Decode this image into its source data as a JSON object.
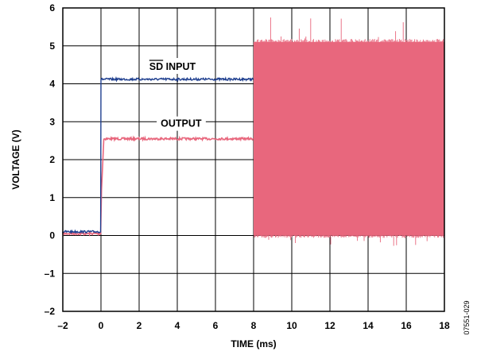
{
  "chart_data": {
    "type": "line",
    "title": "",
    "xlabel": "TIME (ms)",
    "ylabel": "VOLTAGE (V)",
    "xlim": [
      -2,
      18
    ],
    "ylim": [
      -2,
      6
    ],
    "xticks": [
      -2,
      0,
      2,
      4,
      6,
      8,
      10,
      12,
      14,
      16,
      18
    ],
    "yticks": [
      -2,
      -1,
      0,
      1,
      2,
      3,
      4,
      5,
      6
    ],
    "xtick_labels": [
      "–2",
      "0",
      "2",
      "4",
      "6",
      "8",
      "10",
      "12",
      "14",
      "16",
      "18"
    ],
    "ytick_labels": [
      "–2",
      "–1",
      "0",
      "1",
      "2",
      "3",
      "4",
      "5",
      "6"
    ],
    "grid": true,
    "series": [
      {
        "name": "SD INPUT",
        "color": "#1f3f8f",
        "x": [
          -2,
          0,
          0,
          8
        ],
        "y": [
          0.1,
          0.1,
          4.12,
          4.12
        ]
      },
      {
        "name": "OUTPUT",
        "color": "#e8677d",
        "x": [
          -2,
          0,
          0.15,
          8,
          8,
          18
        ],
        "y": [
          0.05,
          0.05,
          2.55,
          2.55,
          0,
          5.1
        ]
      }
    ],
    "switching_band": {
      "x": [
        8,
        18
      ],
      "y_low": 0.0,
      "y_high": 5.1,
      "spike_max": 5.7,
      "spike_min": -0.25
    },
    "annotations": [
      {
        "text_over": "SD",
        "text": " INPUT",
        "x": 4.2,
        "y": 4.45
      },
      {
        "text": "OUTPUT",
        "x": 4.2,
        "y": 2.95
      }
    ],
    "figure_id": "07551-029"
  }
}
